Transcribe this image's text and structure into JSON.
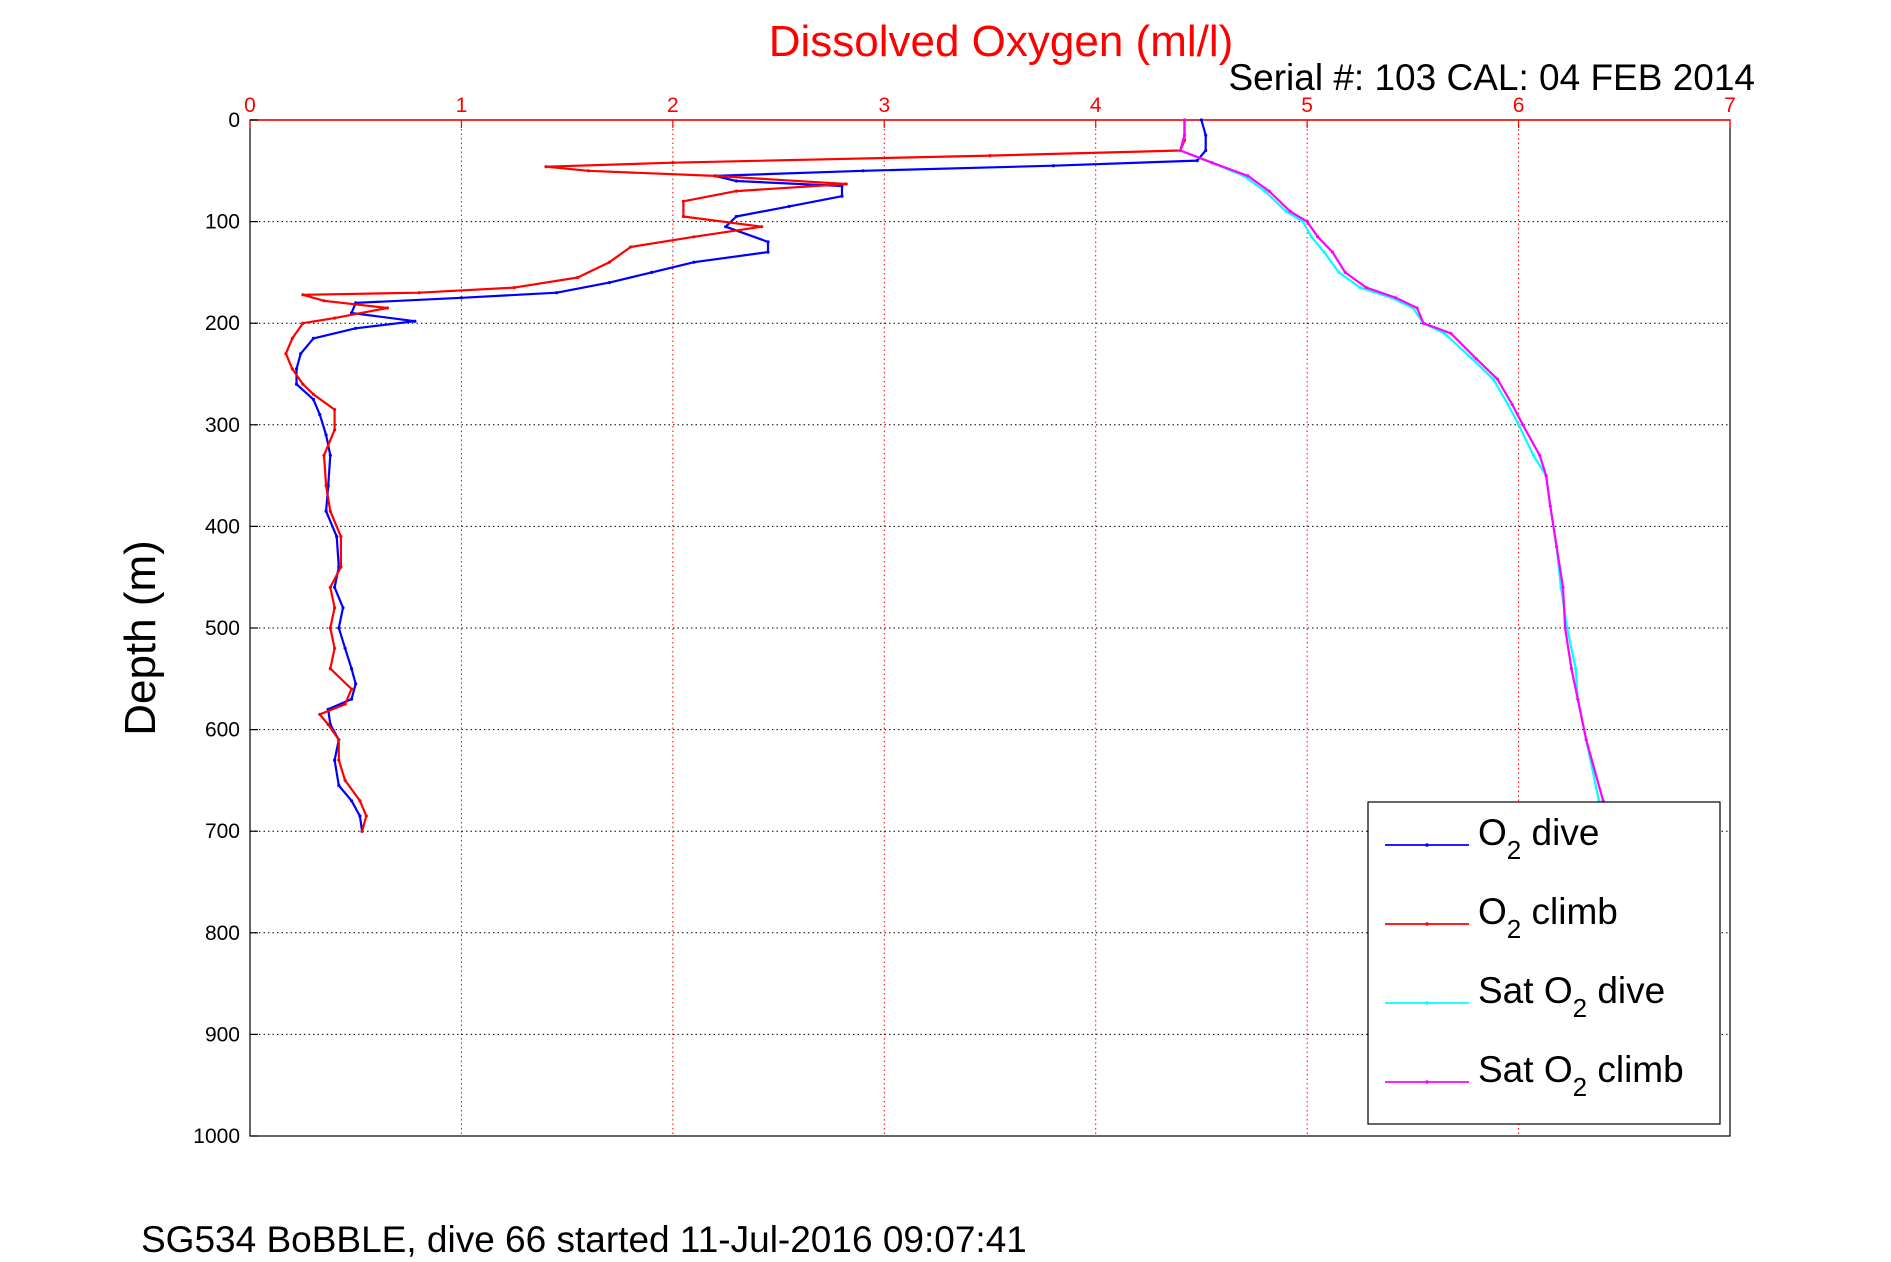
{
  "chart_data": {
    "type": "line",
    "title": "Dissolved Oxygen (ml/l)",
    "subtitle": "Serial #: 103  CAL: 04 FEB 2014",
    "ylabel": "Depth (m)",
    "footer": "SG534 BoBBLE, dive 66 started 11-Jul-2016 09:07:41",
    "xlim": [
      0,
      7
    ],
    "ylim": [
      0,
      1000
    ],
    "y_reversed": true,
    "x_axis_position": "top",
    "grid": true,
    "legend_position": "lower-right",
    "xticks": [
      "0",
      "1",
      "2",
      "3",
      "4",
      "5",
      "6",
      "7"
    ],
    "yticks": [
      "0",
      "100",
      "200",
      "300",
      "400",
      "500",
      "600",
      "700",
      "800",
      "900",
      "1000"
    ],
    "series": [
      {
        "name": "O2 dive",
        "legend_main": "O",
        "legend_sub": "2",
        "legend_suffix": " dive",
        "legend_prefix": "",
        "color": "#0000ff",
        "points": [
          [
            4.5,
            0
          ],
          [
            4.52,
            15
          ],
          [
            4.52,
            30
          ],
          [
            4.48,
            40
          ],
          [
            3.8,
            45
          ],
          [
            2.9,
            50
          ],
          [
            2.2,
            55
          ],
          [
            2.3,
            60
          ],
          [
            2.8,
            65
          ],
          [
            2.8,
            75
          ],
          [
            2.55,
            85
          ],
          [
            2.3,
            95
          ],
          [
            2.25,
            105
          ],
          [
            2.45,
            120
          ],
          [
            2.45,
            130
          ],
          [
            2.1,
            140
          ],
          [
            1.9,
            150
          ],
          [
            1.7,
            160
          ],
          [
            1.45,
            170
          ],
          [
            1.0,
            175
          ],
          [
            0.5,
            180
          ],
          [
            0.48,
            190
          ],
          [
            0.78,
            198
          ],
          [
            0.5,
            205
          ],
          [
            0.3,
            215
          ],
          [
            0.24,
            230
          ],
          [
            0.22,
            245
          ],
          [
            0.22,
            260
          ],
          [
            0.3,
            275
          ],
          [
            0.33,
            290
          ],
          [
            0.36,
            310
          ],
          [
            0.38,
            330
          ],
          [
            0.37,
            360
          ],
          [
            0.36,
            385
          ],
          [
            0.41,
            410
          ],
          [
            0.42,
            440
          ],
          [
            0.4,
            460
          ],
          [
            0.44,
            480
          ],
          [
            0.42,
            500
          ],
          [
            0.45,
            520
          ],
          [
            0.48,
            540
          ],
          [
            0.5,
            555
          ],
          [
            0.48,
            570
          ],
          [
            0.37,
            580
          ],
          [
            0.38,
            595
          ],
          [
            0.42,
            610
          ],
          [
            0.4,
            630
          ],
          [
            0.42,
            655
          ],
          [
            0.48,
            670
          ],
          [
            0.52,
            685
          ],
          [
            0.53,
            700
          ]
        ]
      },
      {
        "name": "O2 climb",
        "legend_main": "O",
        "legend_sub": "2",
        "legend_suffix": " climb",
        "legend_prefix": "",
        "color": "#ff0000",
        "points": [
          [
            4.42,
            0
          ],
          [
            4.42,
            20
          ],
          [
            4.4,
            30
          ],
          [
            3.5,
            35
          ],
          [
            2.0,
            42
          ],
          [
            1.4,
            46
          ],
          [
            1.6,
            50
          ],
          [
            2.2,
            55
          ],
          [
            2.82,
            63
          ],
          [
            2.3,
            70
          ],
          [
            2.05,
            80
          ],
          [
            2.05,
            95
          ],
          [
            2.42,
            105
          ],
          [
            2.1,
            115
          ],
          [
            1.8,
            125
          ],
          [
            1.7,
            140
          ],
          [
            1.55,
            155
          ],
          [
            1.25,
            165
          ],
          [
            0.8,
            170
          ],
          [
            0.25,
            172
          ],
          [
            0.35,
            178
          ],
          [
            0.65,
            185
          ],
          [
            0.4,
            195
          ],
          [
            0.25,
            200
          ],
          [
            0.2,
            215
          ],
          [
            0.17,
            230
          ],
          [
            0.2,
            245
          ],
          [
            0.25,
            260
          ],
          [
            0.3,
            270
          ],
          [
            0.4,
            285
          ],
          [
            0.4,
            305
          ],
          [
            0.35,
            330
          ],
          [
            0.36,
            360
          ],
          [
            0.38,
            385
          ],
          [
            0.43,
            410
          ],
          [
            0.43,
            440
          ],
          [
            0.38,
            460
          ],
          [
            0.4,
            480
          ],
          [
            0.38,
            500
          ],
          [
            0.4,
            520
          ],
          [
            0.38,
            540
          ],
          [
            0.48,
            560
          ],
          [
            0.45,
            575
          ],
          [
            0.33,
            585
          ],
          [
            0.37,
            595
          ],
          [
            0.42,
            610
          ],
          [
            0.42,
            630
          ],
          [
            0.45,
            650
          ],
          [
            0.52,
            670
          ],
          [
            0.55,
            685
          ],
          [
            0.53,
            700
          ]
        ]
      },
      {
        "name": "Sat O2 dive",
        "legend_main": "Sat O",
        "legend_sub": "2",
        "legend_suffix": " dive",
        "legend_prefix": "",
        "color": "#00ffff",
        "points": [
          [
            4.42,
            0
          ],
          [
            4.42,
            15
          ],
          [
            4.4,
            30
          ],
          [
            4.55,
            42
          ],
          [
            4.7,
            55
          ],
          [
            4.8,
            70
          ],
          [
            4.9,
            90
          ],
          [
            4.98,
            100
          ],
          [
            5.02,
            115
          ],
          [
            5.08,
            130
          ],
          [
            5.15,
            150
          ],
          [
            5.25,
            165
          ],
          [
            5.4,
            175
          ],
          [
            5.5,
            185
          ],
          [
            5.55,
            200
          ],
          [
            5.65,
            210
          ],
          [
            5.78,
            235
          ],
          [
            5.88,
            255
          ],
          [
            5.95,
            280
          ],
          [
            6.0,
            300
          ],
          [
            6.07,
            330
          ],
          [
            6.13,
            350
          ],
          [
            6.15,
            380
          ],
          [
            6.18,
            420
          ],
          [
            6.2,
            460
          ],
          [
            6.23,
            500
          ],
          [
            6.27,
            540
          ],
          [
            6.28,
            570
          ],
          [
            6.32,
            610
          ],
          [
            6.38,
            670
          ]
        ]
      },
      {
        "name": "Sat O2 climb",
        "legend_main": "Sat O",
        "legend_sub": "2",
        "legend_suffix": " climb",
        "legend_prefix": "",
        "color": "#ff00ff",
        "points": [
          [
            4.42,
            0
          ],
          [
            4.42,
            15
          ],
          [
            4.4,
            30
          ],
          [
            4.55,
            42
          ],
          [
            4.72,
            55
          ],
          [
            4.82,
            70
          ],
          [
            4.92,
            90
          ],
          [
            5.0,
            100
          ],
          [
            5.05,
            115
          ],
          [
            5.12,
            130
          ],
          [
            5.18,
            150
          ],
          [
            5.28,
            165
          ],
          [
            5.42,
            175
          ],
          [
            5.52,
            185
          ],
          [
            5.55,
            200
          ],
          [
            5.68,
            210
          ],
          [
            5.8,
            235
          ],
          [
            5.9,
            255
          ],
          [
            5.97,
            280
          ],
          [
            6.02,
            300
          ],
          [
            6.1,
            330
          ],
          [
            6.13,
            350
          ],
          [
            6.15,
            380
          ],
          [
            6.18,
            420
          ],
          [
            6.21,
            460
          ],
          [
            6.22,
            500
          ],
          [
            6.25,
            540
          ],
          [
            6.28,
            570
          ],
          [
            6.32,
            610
          ],
          [
            6.4,
            670
          ]
        ]
      }
    ]
  }
}
